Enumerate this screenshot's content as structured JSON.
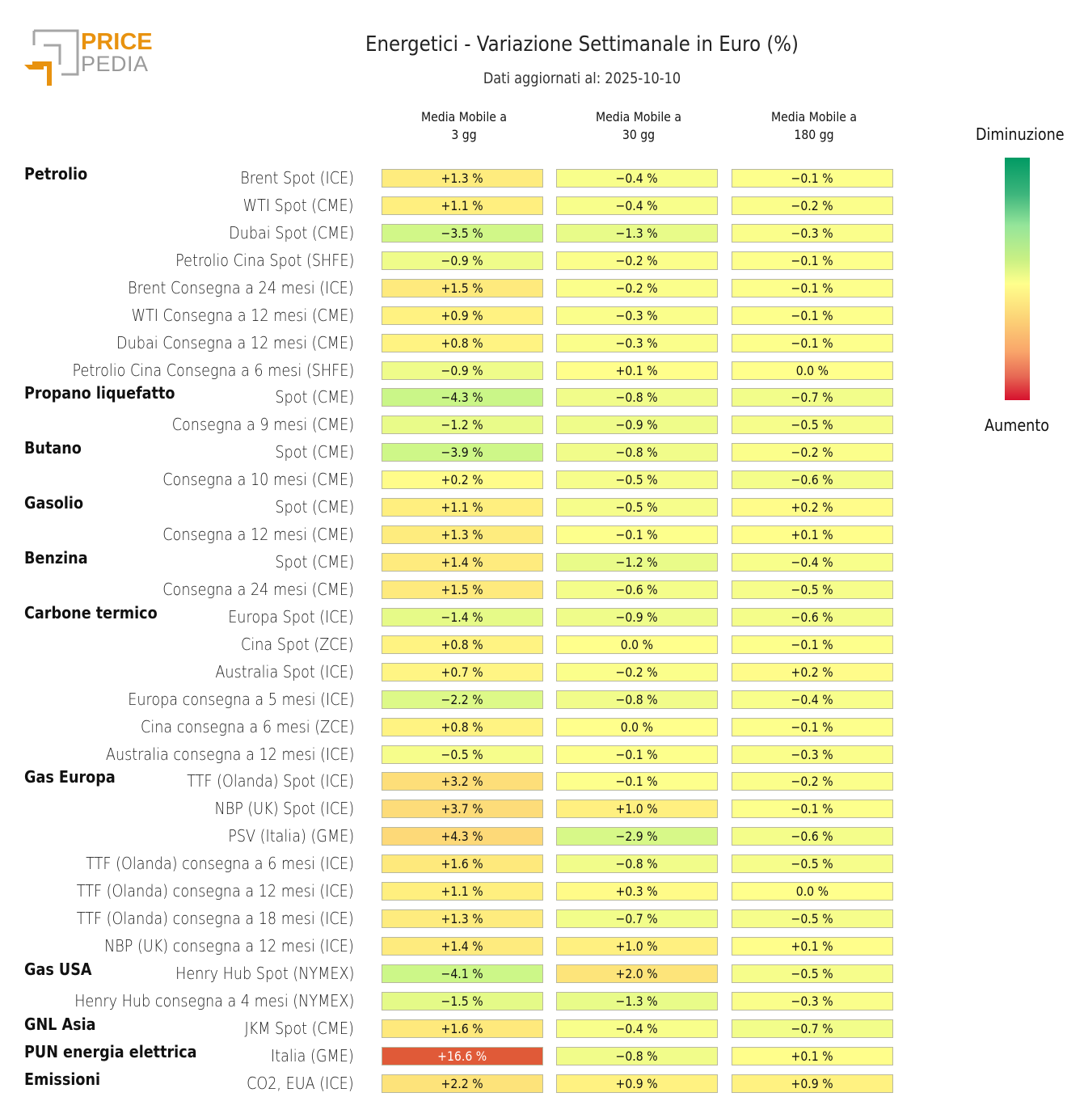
{
  "logo": {
    "line1": "PRICE",
    "line2": "PEDIA",
    "brand_color": "#e8920f",
    "grey_color": "#9a9a9a"
  },
  "header": {
    "title": "Energetici - Variazione Settimanale in Euro (%)",
    "subtitle": "Dati aggiornati al: 2025-10-10"
  },
  "legend": {
    "top_label": "Diminuzione",
    "bottom_label": "Aumento",
    "gradient": [
      "#009a63",
      "#95e59a",
      "#ffff8c",
      "#f9a56a",
      "#d6102d"
    ]
  },
  "chart_data": {
    "type": "heatmap",
    "title": "Energetici - Variazione Settimanale in Euro (%)",
    "subtitle": "Dati aggiornati al: 2025-10-10",
    "columns": [
      "Media Mobile a\n3 gg",
      "Media Mobile a\n30 gg",
      "Media Mobile a\n180 gg"
    ],
    "column_lines": [
      [
        "Media Mobile a",
        "3 gg"
      ],
      [
        "Media Mobile a",
        "30 gg"
      ],
      [
        "Media Mobile a",
        "180 gg"
      ]
    ],
    "unit": "%",
    "color_scale": {
      "negative": "Diminuzione (green)",
      "positive": "Aumento (red)",
      "midpoint": 0
    },
    "rows": [
      {
        "group": "Petrolio",
        "label": "Brent Spot (ICE)",
        "values": [
          1.3,
          -0.4,
          -0.1
        ]
      },
      {
        "group": "",
        "label": "WTI Spot (CME)",
        "values": [
          1.1,
          -0.4,
          -0.2
        ]
      },
      {
        "group": "",
        "label": "Dubai Spot (CME)",
        "values": [
          -3.5,
          -1.3,
          -0.3
        ]
      },
      {
        "group": "",
        "label": "Petrolio Cina Spot (SHFE)",
        "values": [
          -0.9,
          -0.2,
          -0.1
        ]
      },
      {
        "group": "",
        "label": "Brent Consegna a 24 mesi (ICE)",
        "values": [
          1.5,
          -0.2,
          -0.1
        ]
      },
      {
        "group": "",
        "label": "WTI Consegna a 12 mesi (CME)",
        "values": [
          0.9,
          -0.3,
          -0.1
        ]
      },
      {
        "group": "",
        "label": "Dubai Consegna a 12 mesi (CME)",
        "values": [
          0.8,
          -0.3,
          -0.1
        ]
      },
      {
        "group": "",
        "label": "Petrolio Cina Consegna a 6 mesi (SHFE)",
        "values": [
          -0.9,
          0.1,
          0.0
        ]
      },
      {
        "group": "Propano liquefatto",
        "label": "Spot (CME)",
        "values": [
          -4.3,
          -0.8,
          -0.7
        ]
      },
      {
        "group": "",
        "label": "Consegna a 9 mesi (CME)",
        "values": [
          -1.2,
          -0.9,
          -0.5
        ]
      },
      {
        "group": "Butano",
        "label": "Spot (CME)",
        "values": [
          -3.9,
          -0.8,
          -0.2
        ]
      },
      {
        "group": "",
        "label": "Consegna a 10 mesi (CME)",
        "values": [
          0.2,
          -0.5,
          -0.6
        ]
      },
      {
        "group": "Gasolio",
        "label": "Spot (CME)",
        "values": [
          1.1,
          -0.5,
          0.2
        ]
      },
      {
        "group": "",
        "label": "Consegna a 12 mesi (CME)",
        "values": [
          1.3,
          -0.1,
          0.1
        ]
      },
      {
        "group": "Benzina",
        "label": "Spot (CME)",
        "values": [
          1.4,
          -1.2,
          -0.4
        ]
      },
      {
        "group": "",
        "label": "Consegna a 24 mesi (CME)",
        "values": [
          1.5,
          -0.6,
          -0.5
        ]
      },
      {
        "group": "Carbone termico",
        "label": "Europa Spot (ICE)",
        "values": [
          -1.4,
          -0.9,
          -0.6
        ]
      },
      {
        "group": "",
        "label": "Cina Spot (ZCE)",
        "values": [
          0.8,
          0.0,
          -0.1
        ]
      },
      {
        "group": "",
        "label": "Australia Spot (ICE)",
        "values": [
          0.7,
          -0.2,
          0.2
        ]
      },
      {
        "group": "",
        "label": "Europa consegna a 5 mesi (ICE)",
        "values": [
          -2.2,
          -0.8,
          -0.4
        ]
      },
      {
        "group": "",
        "label": "Cina consegna a 6 mesi (ZCE)",
        "values": [
          0.8,
          0.0,
          -0.1
        ]
      },
      {
        "group": "",
        "label": "Australia consegna a 12 mesi (ICE)",
        "values": [
          -0.5,
          -0.1,
          -0.3
        ]
      },
      {
        "group": "Gas Europa",
        "label": "TTF (Olanda) Spot (ICE)",
        "values": [
          3.2,
          -0.1,
          -0.2
        ]
      },
      {
        "group": "",
        "label": "NBP (UK) Spot (ICE)",
        "values": [
          3.7,
          1.0,
          -0.1
        ]
      },
      {
        "group": "",
        "label": "PSV (Italia) (GME)",
        "values": [
          4.3,
          -2.9,
          -0.6
        ]
      },
      {
        "group": "",
        "label": "TTF (Olanda) consegna a 6 mesi (ICE)",
        "values": [
          1.6,
          -0.8,
          -0.5
        ]
      },
      {
        "group": "",
        "label": "TTF (Olanda) consegna a 12 mesi (ICE)",
        "values": [
          1.1,
          0.3,
          0.0
        ]
      },
      {
        "group": "",
        "label": "TTF (Olanda) consegna a 18 mesi (ICE)",
        "values": [
          1.3,
          -0.7,
          -0.5
        ]
      },
      {
        "group": "",
        "label": "NBP (UK) consegna a 12 mesi (ICE)",
        "values": [
          1.4,
          1.0,
          0.1
        ]
      },
      {
        "group": "Gas USA",
        "label": "Henry Hub Spot (NYMEX)",
        "values": [
          -4.1,
          2.0,
          -0.5
        ]
      },
      {
        "group": "",
        "label": "Henry Hub consegna a 4 mesi (NYMEX)",
        "values": [
          -1.5,
          -1.3,
          -0.3
        ]
      },
      {
        "group": "GNL Asia",
        "label": "JKM Spot (CME)",
        "values": [
          1.6,
          -0.4,
          -0.7
        ]
      },
      {
        "group": "PUN energia elettrica",
        "label": "Italia (GME)",
        "values": [
          16.6,
          -0.8,
          0.1
        ]
      },
      {
        "group": "Emissioni",
        "label": "CO2, EUA (ICE)",
        "values": [
          2.2,
          0.9,
          0.9
        ]
      }
    ]
  }
}
